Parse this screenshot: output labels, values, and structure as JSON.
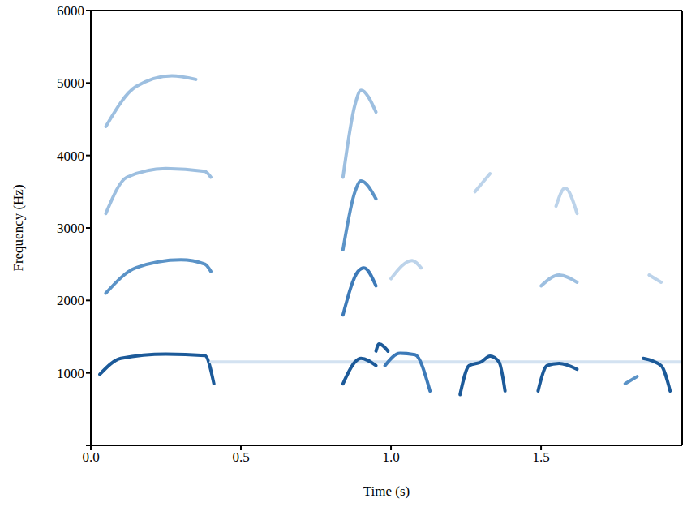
{
  "chart_data": {
    "type": "line",
    "x_label": "Time (s)",
    "y_label": "Frequency (Hz)",
    "xlim": [
      0,
      1.97
    ],
    "xticks": [
      {
        "value": 0,
        "label": "0.0"
      },
      {
        "value": 0.5,
        "label": "0.5"
      },
      {
        "value": 1,
        "label": "1.0"
      },
      {
        "value": 1.5,
        "label": "1.5"
      }
    ],
    "ylim": [
      0,
      6000
    ],
    "yticks": [
      0,
      1000,
      2000,
      3000,
      4000,
      5000,
      6000
    ],
    "grid": false,
    "series": [
      {
        "color": "#1c5a99",
        "x": [
          0.03,
          0.1,
          0.25,
          0.38,
          0.41
        ],
        "values": [
          980,
          1200,
          1260,
          1240,
          850
        ]
      },
      {
        "color": "#5b93c7",
        "x": [
          0.05,
          0.15,
          0.3,
          0.38,
          0.4
        ],
        "values": [
          2100,
          2450,
          2560,
          2500,
          2400
        ]
      },
      {
        "color": "#9dbfe0",
        "x": [
          0.05,
          0.12,
          0.25,
          0.38,
          0.4
        ],
        "values": [
          3200,
          3700,
          3820,
          3780,
          3700
        ]
      },
      {
        "color": "#9dbfe0",
        "x": [
          0.05,
          0.15,
          0.27,
          0.35
        ],
        "values": [
          4400,
          4950,
          5100,
          5050
        ]
      },
      {
        "color": "#d3e2f1",
        "x": [
          0.4,
          1.97
        ],
        "values": [
          1150,
          1150
        ]
      },
      {
        "color": "#1c5a99",
        "x": [
          0.84,
          0.88,
          0.9,
          0.95
        ],
        "values": [
          850,
          1150,
          1200,
          1100
        ]
      },
      {
        "color": "#1c5a99",
        "x": [
          0.95,
          0.96,
          0.99
        ],
        "values": [
          1300,
          1400,
          1300
        ]
      },
      {
        "color": "#3d7ab8",
        "x": [
          0.84,
          0.89,
          0.91,
          0.95
        ],
        "values": [
          1800,
          2400,
          2450,
          2200
        ]
      },
      {
        "color": "#5b93c7",
        "x": [
          0.84,
          0.88,
          0.9,
          0.95
        ],
        "values": [
          2700,
          3500,
          3650,
          3400
        ]
      },
      {
        "color": "#9dbfe0",
        "x": [
          0.84,
          0.88,
          0.9,
          0.95
        ],
        "values": [
          3700,
          4700,
          4900,
          4600
        ]
      },
      {
        "color": "#3d7ab8",
        "x": [
          0.98,
          1.03,
          1.08,
          1.13
        ],
        "values": [
          1100,
          1270,
          1250,
          750
        ]
      },
      {
        "color": "#bcd3ea",
        "x": [
          1,
          1.07,
          1.1
        ],
        "values": [
          2300,
          2550,
          2450
        ]
      },
      {
        "color": "#1c5a99",
        "x": [
          1.23,
          1.26,
          1.3,
          1.33,
          1.36,
          1.38
        ],
        "values": [
          700,
          1100,
          1150,
          1230,
          1150,
          750
        ]
      },
      {
        "color": "#bcd3ea",
        "x": [
          1.28,
          1.33
        ],
        "values": [
          3500,
          3750
        ]
      },
      {
        "color": "#1c5a99",
        "x": [
          1.49,
          1.52,
          1.56,
          1.62
        ],
        "values": [
          750,
          1100,
          1130,
          1050
        ]
      },
      {
        "color": "#9dbfe0",
        "x": [
          1.5,
          1.56,
          1.62
        ],
        "values": [
          2200,
          2350,
          2250
        ]
      },
      {
        "color": "#bcd3ea",
        "x": [
          1.55,
          1.58,
          1.62
        ],
        "values": [
          3300,
          3550,
          3200
        ]
      },
      {
        "color": "#5b93c7",
        "x": [
          1.78,
          1.82
        ],
        "values": [
          850,
          950
        ]
      },
      {
        "color": "#1c5a99",
        "x": [
          1.84,
          1.9,
          1.93
        ],
        "values": [
          1200,
          1100,
          750
        ]
      },
      {
        "color": "#bcd3ea",
        "x": [
          1.86,
          1.9
        ],
        "values": [
          2350,
          2250
        ]
      }
    ]
  }
}
